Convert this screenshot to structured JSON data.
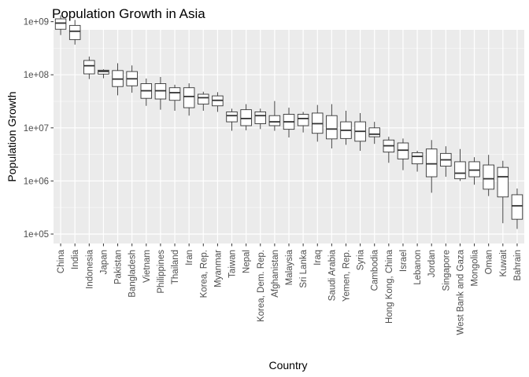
{
  "chart_data": {
    "type": "boxplot",
    "title": "Population Growth in Asia",
    "xlabel": "Country",
    "ylabel": "Population Growth",
    "y_scale": "log10",
    "ylim": [
      100000,
      1700000000
    ],
    "y_ticks": [
      {
        "value": 100000,
        "label": "1e+05"
      },
      {
        "value": 1000000,
        "label": "1e+06"
      },
      {
        "value": 10000000,
        "label": "1e+07"
      },
      {
        "value": 100000000,
        "label": "1e+08"
      },
      {
        "value": 1000000000,
        "label": "1e+09"
      }
    ],
    "grid": true,
    "categories": [
      "China",
      "India",
      "Indonesia",
      "Japan",
      "Pakistan",
      "Bangladesh",
      "Vietnam",
      "Philippines",
      "Thailand",
      "Iran",
      "Korea, Rep.",
      "Myanmar",
      "Taiwan",
      "Nepal",
      "Korea, Dem. Rep.",
      "Afghanistan",
      "Malaysia",
      "Sri Lanka",
      "Iraq",
      "Saudi Arabia",
      "Yemen, Rep.",
      "Syria",
      "Cambodia",
      "Hong Kong, China",
      "Israel",
      "Lebanon",
      "Jordan",
      "Singapore",
      "West Bank and Gaza",
      "Mongolia",
      "Oman",
      "Kuwait",
      "Bahrain"
    ],
    "boxes": [
      {
        "min": 560000000,
        "q1": 720000000,
        "median": 940000000,
        "q3": 1130000000,
        "max": 1320000000
      },
      {
        "min": 370000000,
        "q1": 460000000,
        "median": 660000000,
        "q3": 850000000,
        "max": 1080000000
      },
      {
        "min": 83000000,
        "q1": 104000000,
        "median": 148000000,
        "q3": 186000000,
        "max": 220000000
      },
      {
        "min": 86000000,
        "q1": 103000000,
        "median": 116000000,
        "q3": 122000000,
        "max": 127000000
      },
      {
        "min": 41000000,
        "q1": 60000000,
        "median": 83000000,
        "q3": 120000000,
        "max": 165000000
      },
      {
        "min": 46000000,
        "q1": 62000000,
        "median": 84000000,
        "q3": 115000000,
        "max": 150000000
      },
      {
        "min": 26000000,
        "q1": 36000000,
        "median": 50000000,
        "q3": 68000000,
        "max": 85000000
      },
      {
        "min": 22000000,
        "q1": 35000000,
        "median": 50000000,
        "q3": 68000000,
        "max": 91000000
      },
      {
        "min": 21000000,
        "q1": 33000000,
        "median": 46000000,
        "q3": 57000000,
        "max": 65000000
      },
      {
        "min": 17000000,
        "q1": 24000000,
        "median": 39000000,
        "q3": 57000000,
        "max": 69000000
      },
      {
        "min": 21000000,
        "q1": 28000000,
        "median": 37000000,
        "q3": 43000000,
        "max": 48000000
      },
      {
        "min": 20000000,
        "q1": 26000000,
        "median": 33000000,
        "q3": 40000000,
        "max": 47000000
      },
      {
        "min": 8800000,
        "q1": 13000000,
        "median": 17000000,
        "q3": 20000000,
        "max": 23000000
      },
      {
        "min": 9000000,
        "q1": 11000000,
        "median": 15000000,
        "q3": 22000000,
        "max": 28000000
      },
      {
        "min": 9500000,
        "q1": 12000000,
        "median": 17000000,
        "q3": 20000000,
        "max": 23000000
      },
      {
        "min": 8800000,
        "q1": 11000000,
        "median": 13000000,
        "q3": 17000000,
        "max": 32000000
      },
      {
        "min": 6600000,
        "q1": 9400000,
        "median": 13000000,
        "q3": 18000000,
        "max": 24000000
      },
      {
        "min": 8200000,
        "q1": 11000000,
        "median": 15000000,
        "q3": 18000000,
        "max": 20000000
      },
      {
        "min": 5500000,
        "q1": 7900000,
        "median": 12000000,
        "q3": 19000000,
        "max": 27000000
      },
      {
        "min": 4100000,
        "q1": 6200000,
        "median": 9500000,
        "q3": 17000000,
        "max": 28000000
      },
      {
        "min": 4800000,
        "q1": 6300000,
        "median": 9000000,
        "q3": 13000000,
        "max": 21000000
      },
      {
        "min": 3700000,
        "q1": 5600000,
        "median": 8600000,
        "q3": 13000000,
        "max": 19000000
      },
      {
        "min": 5000000,
        "q1": 6800000,
        "median": 7600000,
        "q3": 10000000,
        "max": 13000000
      },
      {
        "min": 2200000,
        "q1": 3500000,
        "median": 4600000,
        "q3": 5900000,
        "max": 6800000
      },
      {
        "min": 1600000,
        "q1": 2600000,
        "median": 3800000,
        "q3": 5200000,
        "max": 6300000
      },
      {
        "min": 1500000,
        "q1": 2100000,
        "median": 2900000,
        "q3": 3400000,
        "max": 3700000
      },
      {
        "min": 600000,
        "q1": 1200000,
        "median": 2100000,
        "q3": 4000000,
        "max": 5900000
      },
      {
        "min": 1200000,
        "q1": 1900000,
        "median": 2500000,
        "q3": 3300000,
        "max": 4500000
      },
      {
        "min": 1000000,
        "q1": 1100000,
        "median": 1400000,
        "q3": 2300000,
        "max": 4000000
      },
      {
        "min": 850000,
        "q1": 1200000,
        "median": 1600000,
        "q3": 2300000,
        "max": 2800000
      },
      {
        "min": 520000,
        "q1": 700000,
        "median": 1100000,
        "q3": 2000000,
        "max": 3100000
      },
      {
        "min": 160000,
        "q1": 500000,
        "median": 1200000,
        "q3": 1800000,
        "max": 2400000
      },
      {
        "min": 125000,
        "q1": 190000,
        "median": 340000,
        "q3": 550000,
        "max": 720000
      }
    ]
  }
}
